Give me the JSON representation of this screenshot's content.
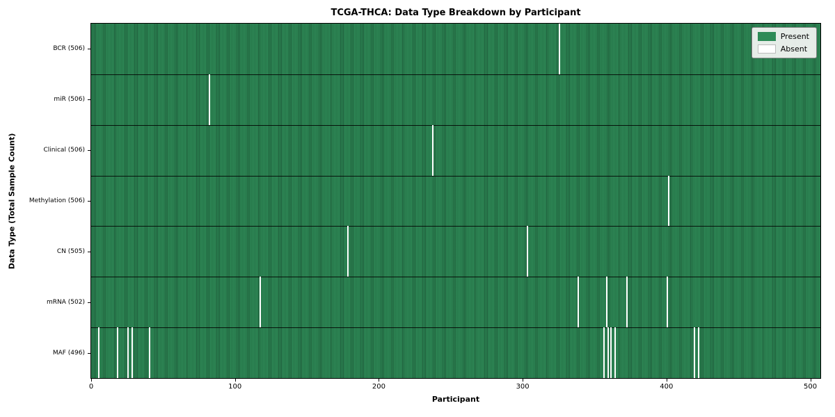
{
  "chart_data": {
    "type": "heatmap",
    "title": "TCGA-THCA: Data Type Breakdown by Participant",
    "xlabel": "Participant",
    "ylabel": "Data Type (Total Sample Count)",
    "n_participants": 507,
    "x_ticks": [
      0,
      100,
      200,
      300,
      400,
      500
    ],
    "colors": {
      "present": "#2e8b57",
      "absent": "#ffffff",
      "grid": "#000000"
    },
    "legend": [
      {
        "label": "Present",
        "color": "#2e8b57"
      },
      {
        "label": "Absent",
        "color": "#ffffff"
      }
    ],
    "rows": [
      {
        "label": "BCR (506)",
        "total": 506,
        "absent_participants": [
          325
        ]
      },
      {
        "label": "miR (506)",
        "total": 506,
        "absent_participants": [
          82
        ]
      },
      {
        "label": "Clinical (506)",
        "total": 506,
        "absent_participants": [
          237
        ]
      },
      {
        "label": "Methylation (506)",
        "total": 506,
        "absent_participants": [
          401
        ]
      },
      {
        "label": "CN (505)",
        "total": 505,
        "absent_participants": [
          178,
          303
        ]
      },
      {
        "label": "mRNA (502)",
        "total": 502,
        "absent_participants": [
          117,
          338,
          358,
          372,
          400
        ]
      },
      {
        "label": "MAF (496)",
        "total": 496,
        "absent_participants": [
          5,
          18,
          25,
          28,
          40,
          356,
          359,
          361,
          364,
          419,
          422
        ]
      }
    ]
  }
}
